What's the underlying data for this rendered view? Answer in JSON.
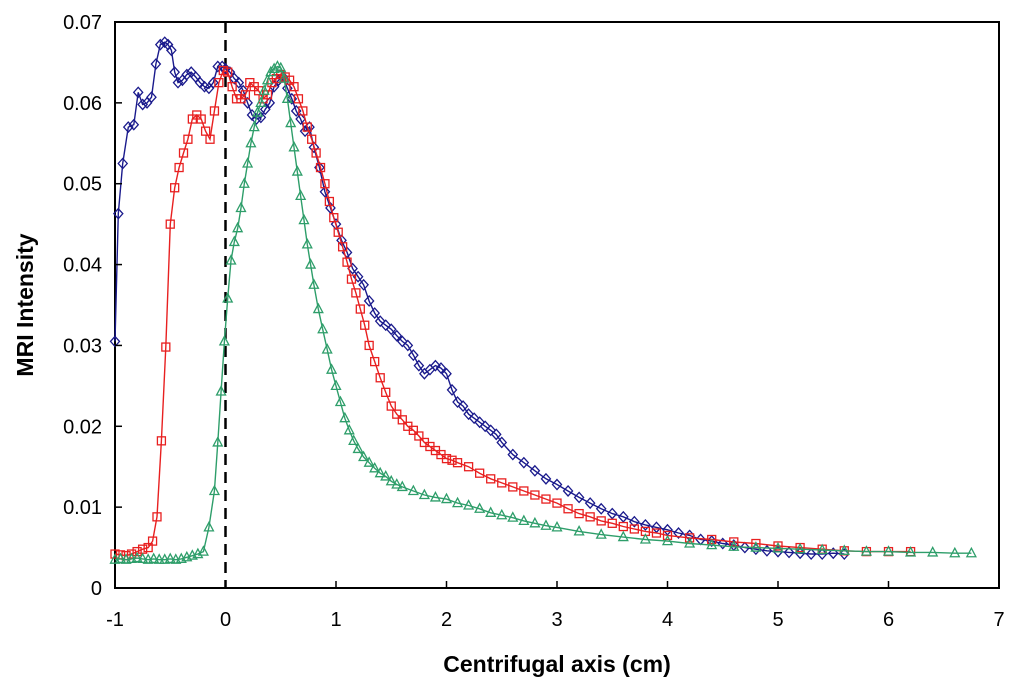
{
  "chart_data": {
    "type": "line",
    "title": "",
    "xlabel": "Centrifugal axis (cm)",
    "ylabel": "MRI Intensity",
    "xlim": [
      -1,
      7
    ],
    "ylim": [
      0,
      0.07
    ],
    "xticks": [
      "-1",
      "0",
      "1",
      "2",
      "3",
      "4",
      "5",
      "6",
      "7"
    ],
    "yticks": [
      "0",
      "0.01",
      "0.02",
      "0.03",
      "0.04",
      "0.05",
      "0.06",
      "0.07"
    ],
    "grid": false,
    "legend": "none",
    "reference_line": {
      "x": 0,
      "style": "dashed",
      "color": "#000000"
    },
    "series": [
      {
        "color": "#1a1a8c",
        "marker": "diamond",
        "x": [
          -1.0,
          -0.97,
          -0.93,
          -0.88,
          -0.83,
          -0.79,
          -0.75,
          -0.71,
          -0.67,
          -0.63,
          -0.59,
          -0.55,
          -0.52,
          -0.49,
          -0.46,
          -0.43,
          -0.39,
          -0.35,
          -0.31,
          -0.27,
          -0.23,
          -0.19,
          -0.15,
          -0.11,
          -0.07,
          -0.03,
          0.0,
          0.04,
          0.08,
          0.12,
          0.16,
          0.2,
          0.24,
          0.28,
          0.32,
          0.36,
          0.4,
          0.44,
          0.48,
          0.52,
          0.56,
          0.6,
          0.64,
          0.68,
          0.72,
          0.76,
          0.8,
          0.85,
          0.9,
          0.95,
          1.0,
          1.05,
          1.1,
          1.15,
          1.2,
          1.25,
          1.3,
          1.35,
          1.4,
          1.45,
          1.5,
          1.55,
          1.6,
          1.65,
          1.7,
          1.75,
          1.8,
          1.85,
          1.9,
          1.95,
          2.0,
          2.05,
          2.1,
          2.15,
          2.2,
          2.25,
          2.3,
          2.35,
          2.4,
          2.45,
          2.5,
          2.6,
          2.7,
          2.8,
          2.9,
          3.0,
          3.1,
          3.2,
          3.3,
          3.4,
          3.5,
          3.6,
          3.7,
          3.8,
          3.9,
          4.0,
          4.1,
          4.2,
          4.3,
          4.4,
          4.5,
          4.6,
          4.7,
          4.8,
          4.9,
          5.0,
          5.1,
          5.2,
          5.3,
          5.4,
          5.5,
          5.6
        ],
        "y": [
          0.0305,
          0.0463,
          0.0525,
          0.057,
          0.0573,
          0.0613,
          0.0598,
          0.06,
          0.0607,
          0.0648,
          0.0672,
          0.0675,
          0.0672,
          0.0665,
          0.0638,
          0.0625,
          0.0628,
          0.0635,
          0.0638,
          0.0632,
          0.0625,
          0.062,
          0.0618,
          0.0625,
          0.0645,
          0.0645,
          0.0642,
          0.0638,
          0.063,
          0.0625,
          0.0615,
          0.06,
          0.0585,
          0.058,
          0.0582,
          0.0592,
          0.06,
          0.062,
          0.0628,
          0.0632,
          0.0618,
          0.0605,
          0.059,
          0.058,
          0.0565,
          0.057,
          0.0545,
          0.052,
          0.049,
          0.047,
          0.045,
          0.043,
          0.0415,
          0.0395,
          0.0385,
          0.0375,
          0.0355,
          0.034,
          0.033,
          0.0325,
          0.032,
          0.0312,
          0.0305,
          0.03,
          0.0288,
          0.0275,
          0.0265,
          0.027,
          0.0275,
          0.0272,
          0.0265,
          0.0245,
          0.023,
          0.0225,
          0.0215,
          0.021,
          0.0205,
          0.02,
          0.0195,
          0.019,
          0.018,
          0.0165,
          0.0155,
          0.0145,
          0.0135,
          0.0128,
          0.012,
          0.0112,
          0.0105,
          0.0098,
          0.0092,
          0.0088,
          0.0082,
          0.0078,
          0.0075,
          0.0072,
          0.0068,
          0.0065,
          0.006,
          0.0058,
          0.0055,
          0.0053,
          0.005,
          0.0048,
          0.0046,
          0.0045,
          0.0044,
          0.0043,
          0.0042,
          0.0042,
          0.0043,
          0.0042
        ]
      },
      {
        "color": "#e82020",
        "marker": "square",
        "x": [
          -1.0,
          -0.95,
          -0.9,
          -0.85,
          -0.8,
          -0.75,
          -0.7,
          -0.66,
          -0.62,
          -0.58,
          -0.54,
          -0.5,
          -0.46,
          -0.42,
          -0.38,
          -0.34,
          -0.3,
          -0.26,
          -0.22,
          -0.18,
          -0.14,
          -0.1,
          -0.06,
          -0.02,
          0.02,
          0.06,
          0.1,
          0.14,
          0.18,
          0.22,
          0.26,
          0.3,
          0.34,
          0.38,
          0.42,
          0.46,
          0.5,
          0.54,
          0.58,
          0.62,
          0.66,
          0.7,
          0.74,
          0.78,
          0.82,
          0.86,
          0.9,
          0.94,
          0.98,
          1.02,
          1.06,
          1.1,
          1.14,
          1.18,
          1.22,
          1.26,
          1.3,
          1.35,
          1.4,
          1.45,
          1.5,
          1.55,
          1.6,
          1.65,
          1.7,
          1.75,
          1.8,
          1.85,
          1.9,
          1.95,
          2.0,
          2.05,
          2.1,
          2.2,
          2.3,
          2.4,
          2.5,
          2.6,
          2.7,
          2.8,
          2.9,
          3.0,
          3.1,
          3.2,
          3.3,
          3.4,
          3.5,
          3.6,
          3.7,
          3.8,
          3.9,
          4.0,
          4.2,
          4.4,
          4.6,
          4.8,
          5.0,
          5.2,
          5.4,
          5.6,
          5.8,
          6.0,
          6.2
        ],
        "y": [
          0.0042,
          0.0041,
          0.004,
          0.0042,
          0.0045,
          0.0048,
          0.005,
          0.0058,
          0.0088,
          0.0182,
          0.0298,
          0.045,
          0.0495,
          0.052,
          0.0538,
          0.0555,
          0.058,
          0.0585,
          0.058,
          0.0565,
          0.0555,
          0.059,
          0.0625,
          0.064,
          0.0638,
          0.062,
          0.0605,
          0.0605,
          0.061,
          0.0625,
          0.062,
          0.0615,
          0.0605,
          0.061,
          0.0625,
          0.063,
          0.0635,
          0.0632,
          0.0628,
          0.062,
          0.0605,
          0.059,
          0.057,
          0.0555,
          0.0538,
          0.052,
          0.05,
          0.0478,
          0.0458,
          0.044,
          0.0422,
          0.0403,
          0.0382,
          0.0365,
          0.0345,
          0.0325,
          0.03,
          0.028,
          0.026,
          0.0242,
          0.0225,
          0.0215,
          0.0208,
          0.02,
          0.0195,
          0.0188,
          0.018,
          0.0175,
          0.017,
          0.0165,
          0.016,
          0.0158,
          0.0155,
          0.015,
          0.0142,
          0.0135,
          0.013,
          0.0125,
          0.012,
          0.0115,
          0.011,
          0.0105,
          0.0098,
          0.0092,
          0.0088,
          0.0083,
          0.008,
          0.0076,
          0.0073,
          0.007,
          0.0068,
          0.0065,
          0.0062,
          0.006,
          0.0057,
          0.0055,
          0.0052,
          0.005,
          0.0048,
          0.0046,
          0.0045,
          0.0045,
          0.0045
        ]
      },
      {
        "color": "#2e9e6a",
        "marker": "triangle",
        "x": [
          -1.0,
          -0.95,
          -0.9,
          -0.85,
          -0.8,
          -0.75,
          -0.7,
          -0.65,
          -0.6,
          -0.55,
          -0.5,
          -0.45,
          -0.4,
          -0.35,
          -0.3,
          -0.25,
          -0.2,
          -0.15,
          -0.1,
          -0.07,
          -0.04,
          -0.01,
          0.02,
          0.05,
          0.08,
          0.11,
          0.14,
          0.17,
          0.2,
          0.23,
          0.26,
          0.29,
          0.32,
          0.35,
          0.38,
          0.41,
          0.44,
          0.47,
          0.5,
          0.53,
          0.56,
          0.59,
          0.62,
          0.65,
          0.68,
          0.71,
          0.74,
          0.77,
          0.8,
          0.84,
          0.88,
          0.92,
          0.96,
          1.0,
          1.04,
          1.08,
          1.12,
          1.16,
          1.2,
          1.25,
          1.3,
          1.35,
          1.4,
          1.45,
          1.5,
          1.55,
          1.6,
          1.7,
          1.8,
          1.9,
          2.0,
          2.1,
          2.2,
          2.3,
          2.4,
          2.5,
          2.6,
          2.7,
          2.8,
          2.9,
          3.0,
          3.2,
          3.4,
          3.6,
          3.8,
          4.0,
          4.2,
          4.4,
          4.6,
          4.8,
          5.0,
          5.2,
          5.4,
          5.6,
          5.8,
          6.0,
          6.2,
          6.4,
          6.6,
          6.75
        ],
        "y": [
          0.0035,
          0.0036,
          0.0035,
          0.0036,
          0.0037,
          0.0036,
          0.0035,
          0.0036,
          0.0035,
          0.0035,
          0.0036,
          0.0035,
          0.0036,
          0.0038,
          0.004,
          0.0042,
          0.0045,
          0.0075,
          0.012,
          0.018,
          0.0243,
          0.0305,
          0.0358,
          0.0405,
          0.0428,
          0.0445,
          0.047,
          0.05,
          0.0525,
          0.055,
          0.057,
          0.0588,
          0.06,
          0.0615,
          0.0628,
          0.0638,
          0.0642,
          0.0645,
          0.0643,
          0.063,
          0.0605,
          0.0575,
          0.0545,
          0.0515,
          0.0485,
          0.0455,
          0.0425,
          0.04,
          0.0375,
          0.0345,
          0.032,
          0.0295,
          0.027,
          0.025,
          0.023,
          0.021,
          0.0195,
          0.0182,
          0.0172,
          0.0162,
          0.0155,
          0.0148,
          0.0142,
          0.0138,
          0.0132,
          0.0128,
          0.0125,
          0.012,
          0.0115,
          0.0112,
          0.011,
          0.0105,
          0.0102,
          0.0098,
          0.0093,
          0.009,
          0.0087,
          0.0083,
          0.008,
          0.0077,
          0.0075,
          0.007,
          0.0066,
          0.0063,
          0.006,
          0.0058,
          0.0055,
          0.0053,
          0.0051,
          0.005,
          0.0049,
          0.0048,
          0.0047,
          0.0046,
          0.0045,
          0.0045,
          0.0044,
          0.0044,
          0.0043,
          0.0043
        ]
      }
    ]
  }
}
